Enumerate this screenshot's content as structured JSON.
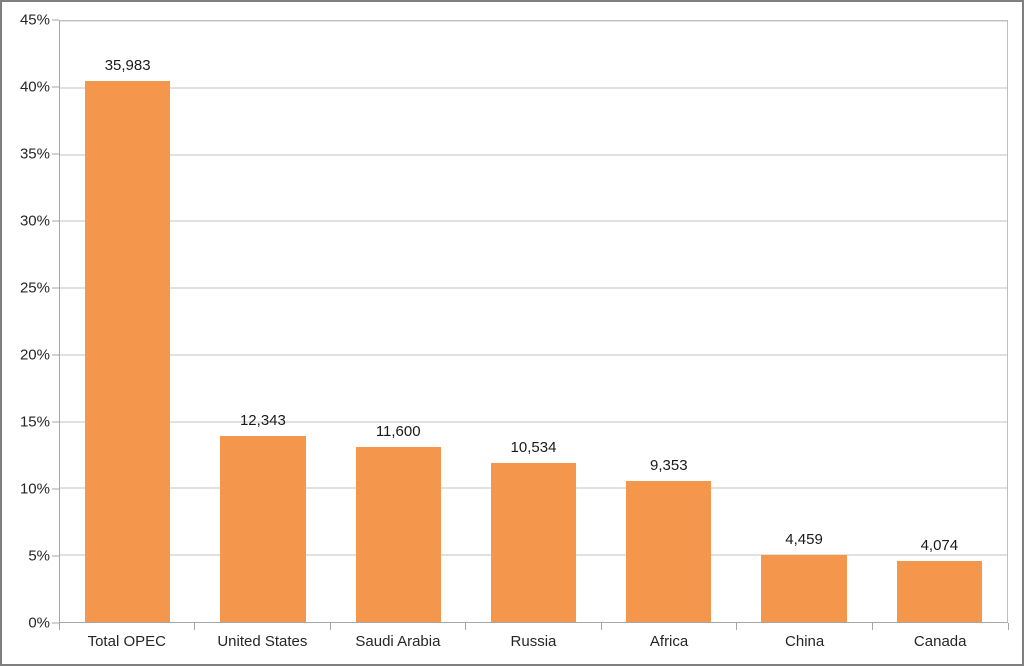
{
  "chart_data": {
    "type": "bar",
    "title": "",
    "xlabel": "",
    "ylabel": "",
    "grid": true,
    "legend": false,
    "ylim": [
      0,
      45
    ],
    "y_unit": "%",
    "y_tick_values": [
      0,
      5,
      10,
      15,
      20,
      25,
      30,
      35,
      40,
      45
    ],
    "y_tick_labels": [
      "0%",
      "5%",
      "10%",
      "15%",
      "20%",
      "25%",
      "30%",
      "35%",
      "40%",
      "45%"
    ],
    "categories": [
      "Total OPEC",
      "United States",
      "Saudi Arabia",
      "Russia",
      "Africa",
      "China",
      "Canada"
    ],
    "bars": [
      {
        "category": "Total OPEC",
        "value": 35983,
        "value_label": "35,983",
        "percent": 40.54
      },
      {
        "category": "United States",
        "value": 12343,
        "value_label": "12,343",
        "percent": 13.91
      },
      {
        "category": "Saudi Arabia",
        "value": 11600,
        "value_label": "11,600",
        "percent": 13.07
      },
      {
        "category": "Russia",
        "value": 10534,
        "value_label": "10,534",
        "percent": 11.87
      },
      {
        "category": "Africa",
        "value": 9353,
        "value_label": "9,353",
        "percent": 10.54
      },
      {
        "category": "China",
        "value": 4459,
        "value_label": "4,459",
        "percent": 5.02
      },
      {
        "category": "Canada",
        "value": 4074,
        "value_label": "4,074",
        "percent": 4.59
      }
    ],
    "colors": {
      "bar": "#f4964b",
      "gridline": "#c3c3c3",
      "axis": "#a6a6a6",
      "plot_border": "#bfbfbf",
      "text": "#262626",
      "frame_border": "#7f7f7f",
      "background": "#ffffff"
    },
    "layout": {
      "bar_slot_fraction": 0.63
    }
  }
}
